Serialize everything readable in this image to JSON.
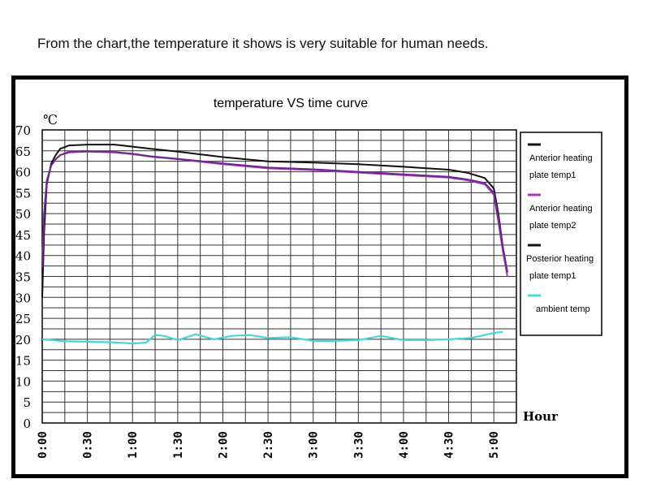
{
  "caption": "From the chart,the temperature it shows is very suitable for human needs.",
  "chart_data": {
    "type": "line",
    "title": "temperature VS time curve",
    "ylabel": "℃",
    "xlabel": "Hour",
    "ylim": [
      0,
      70
    ],
    "xlim": [
      0,
      5.25
    ],
    "yticks": [
      "0",
      "5",
      "10",
      "15",
      "20",
      "25",
      "30",
      "35",
      "40",
      "45",
      "50",
      "55",
      "60",
      "65",
      "70"
    ],
    "xticks": [
      {
        "value": 0,
        "label": "0:00"
      },
      {
        "value": 0.5,
        "label": "0:30"
      },
      {
        "value": 1,
        "label": "1:00"
      },
      {
        "value": 1.5,
        "label": "1:30"
      },
      {
        "value": 2,
        "label": "2:00"
      },
      {
        "value": 2.5,
        "label": "2:30"
      },
      {
        "value": 3,
        "label": "3:00"
      },
      {
        "value": 3.5,
        "label": "3:30"
      },
      {
        "value": 4,
        "label": "4:00"
      },
      {
        "value": 4.5,
        "label": "4:30"
      },
      {
        "value": 5,
        "label": "5:00"
      }
    ],
    "grid": true,
    "legend_position": "right",
    "series": [
      {
        "name": "Anterior heating plate temp1",
        "color": "#111111",
        "x": [
          0,
          0.02,
          0.05,
          0.1,
          0.15,
          0.2,
          0.3,
          0.5,
          0.8,
          1.0,
          1.2,
          1.5,
          2.0,
          2.5,
          3.0,
          3.5,
          4.0,
          4.5,
          4.7,
          4.9,
          5.0,
          5.05,
          5.1,
          5.15
        ],
        "values": [
          30,
          45,
          57,
          62,
          64,
          65.5,
          66.3,
          66.5,
          66.5,
          66.0,
          65.5,
          64.8,
          63.5,
          62.5,
          62.2,
          61.8,
          61.2,
          60.5,
          59.8,
          58.5,
          56,
          50,
          42,
          36
        ]
      },
      {
        "name": "Anterior heating plate temp2",
        "color": "#b030c8",
        "x": [
          0,
          0.02,
          0.05,
          0.1,
          0.15,
          0.2,
          0.3,
          0.5,
          0.8,
          1.0,
          1.2,
          1.5,
          2.0,
          2.5,
          3.0,
          3.5,
          4.0,
          4.5,
          4.7,
          4.9,
          5.0,
          5.05,
          5.1,
          5.15
        ],
        "values": [
          38,
          50,
          58,
          61.5,
          63,
          64,
          64.6,
          64.8,
          64.6,
          64.2,
          63.6,
          63.0,
          61.8,
          60.8,
          60.4,
          59.8,
          59.2,
          58.6,
          58.0,
          57.0,
          54.5,
          48,
          41,
          35
        ]
      },
      {
        "name": "Posterior heating plate temp1",
        "color": "#6a2a8a",
        "x": [
          0,
          0.02,
          0.05,
          0.1,
          0.15,
          0.2,
          0.3,
          0.5,
          0.8,
          1.0,
          1.2,
          1.5,
          2.0,
          2.5,
          3.0,
          3.5,
          4.0,
          4.5,
          4.7,
          4.9,
          5.0,
          5.05,
          5.1,
          5.15
        ],
        "values": [
          37,
          49,
          57.5,
          61.5,
          63,
          64,
          64.8,
          64.9,
          64.7,
          64.3,
          63.7,
          63.1,
          62.0,
          61.0,
          60.6,
          60.0,
          59.4,
          58.8,
          58.2,
          57.3,
          55,
          49,
          42,
          36
        ]
      },
      {
        "name": "ambient temp",
        "color": "#46d6d8",
        "x": [
          0,
          0.25,
          0.5,
          0.75,
          1.0,
          1.15,
          1.25,
          1.35,
          1.5,
          1.7,
          1.9,
          2.1,
          2.3,
          2.5,
          2.75,
          3.0,
          3.25,
          3.5,
          3.75,
          4.0,
          4.25,
          4.5,
          4.75,
          5.0,
          5.1
        ],
        "values": [
          20,
          19.5,
          19.4,
          19.3,
          19.0,
          19.2,
          21,
          20.8,
          19.8,
          21.2,
          20.0,
          20.8,
          21.0,
          20.3,
          20.5,
          19.6,
          19.6,
          19.8,
          20.8,
          19.8,
          19.8,
          20.0,
          20.3,
          21.5,
          21.8
        ]
      }
    ]
  }
}
